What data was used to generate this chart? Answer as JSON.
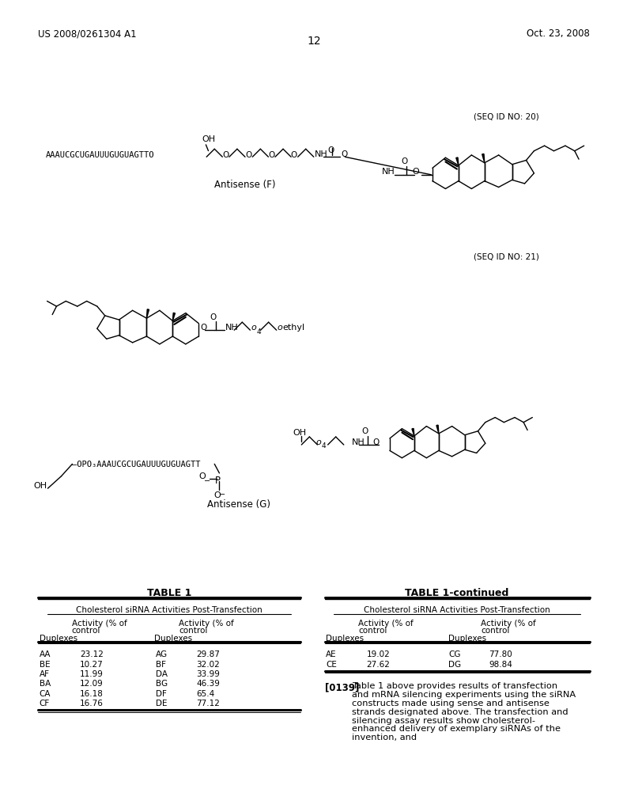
{
  "header_left": "US 2008/0261304 A1",
  "header_right": "Oct. 23, 2008",
  "page_number": "12",
  "seq_id_20": "(SEQ ID NO: 20)",
  "seq_id_21": "(SEQ ID NO: 21)",
  "antisense_f_label": "Antisense (F)",
  "antisense_g_label": "Antisense (G)",
  "antisense_f_seq": "AAAUCGCUGAUUUGUGUAGTTO",
  "antisense_g_seq": "OPO₃AAAUCGCUGAUUUGUGUAGTT",
  "table1_title": "TABLE 1",
  "table1cont_title": "TABLE 1-continued",
  "table1_subtitle": "Cholesterol siRNA Activities Post-Transfection",
  "table1cont_subtitle": "Cholesterol siRNA Activities Post-Transfection",
  "table1_data": [
    [
      "AA",
      "23.12",
      "AG",
      "29.87"
    ],
    [
      "BE",
      "10.27",
      "BF",
      "32.02"
    ],
    [
      "AF",
      "11.99",
      "DA",
      "33.99"
    ],
    [
      "BA",
      "12.09",
      "BG",
      "46.39"
    ],
    [
      "CA",
      "16.18",
      "DF",
      "65.4"
    ],
    [
      "CF",
      "16.76",
      "DE",
      "77.12"
    ]
  ],
  "table2_data": [
    [
      "AE",
      "19.02",
      "CG",
      "77.80"
    ],
    [
      "CE",
      "27.62",
      "DG",
      "98.84"
    ]
  ],
  "paragraph_num": "[0139]",
  "paragraph_text": "   Table 1 above provides results of transfection and mRNA silencing experiments using the siRNA constructs made using sense and antisense strands designated above. The transfection and silencing assay results show cholesterol-enhanced delivery of exemplary siRNAs of the invention, and",
  "bg_color": "#ffffff",
  "text_color": "#000000"
}
